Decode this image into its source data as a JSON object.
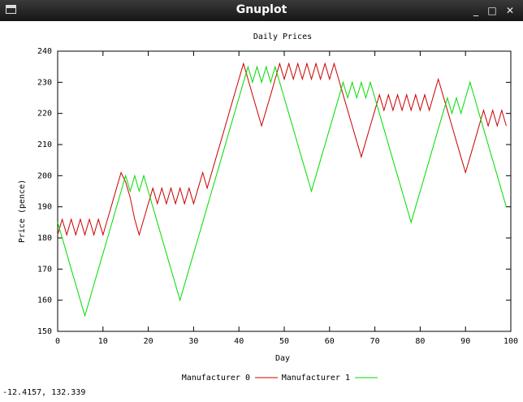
{
  "window": {
    "title": "Gnuplot",
    "icon": "window-menu-icon",
    "buttons": {
      "minimize": "_",
      "maximize": "□",
      "close": "✕"
    }
  },
  "status_text": "-12.4157,  132.339",
  "chart_data": {
    "type": "line",
    "title": "Daily Prices",
    "xlabel": "Day",
    "ylabel": "Price (pence)",
    "xlim": [
      0,
      100
    ],
    "ylim": [
      150,
      240
    ],
    "xticks": [
      0,
      10,
      20,
      30,
      40,
      50,
      60,
      70,
      80,
      90,
      100
    ],
    "yticks": [
      150,
      160,
      170,
      180,
      190,
      200,
      210,
      220,
      230,
      240
    ],
    "legend": "bottom",
    "grid": false,
    "series": [
      {
        "name": "Manufacturer 0",
        "color": "#cc0000",
        "points": [
          [
            0,
            181
          ],
          [
            1,
            186
          ],
          [
            2,
            181
          ],
          [
            3,
            186
          ],
          [
            4,
            181
          ],
          [
            5,
            186
          ],
          [
            6,
            181
          ],
          [
            7,
            186
          ],
          [
            8,
            181
          ],
          [
            9,
            186
          ],
          [
            10,
            181
          ],
          [
            11,
            186
          ],
          [
            12,
            191
          ],
          [
            13,
            196
          ],
          [
            14,
            201
          ],
          [
            15,
            198
          ],
          [
            16,
            193
          ],
          [
            17,
            186
          ],
          [
            18,
            181
          ],
          [
            19,
            186
          ],
          [
            20,
            191
          ],
          [
            21,
            196
          ],
          [
            22,
            191
          ],
          [
            23,
            196
          ],
          [
            24,
            191
          ],
          [
            25,
            196
          ],
          [
            26,
            191
          ],
          [
            27,
            196
          ],
          [
            28,
            191
          ],
          [
            29,
            196
          ],
          [
            30,
            191
          ],
          [
            31,
            196
          ],
          [
            32,
            201
          ],
          [
            33,
            196
          ],
          [
            34,
            201
          ],
          [
            35,
            206
          ],
          [
            36,
            211
          ],
          [
            37,
            216
          ],
          [
            38,
            221
          ],
          [
            39,
            226
          ],
          [
            40,
            231
          ],
          [
            41,
            236
          ],
          [
            42,
            231
          ],
          [
            43,
            226
          ],
          [
            44,
            221
          ],
          [
            45,
            216
          ],
          [
            46,
            221
          ],
          [
            47,
            226
          ],
          [
            48,
            231
          ],
          [
            49,
            236
          ],
          [
            50,
            231
          ],
          [
            51,
            236
          ],
          [
            52,
            231
          ],
          [
            53,
            236
          ],
          [
            54,
            231
          ],
          [
            55,
            236
          ],
          [
            56,
            231
          ],
          [
            57,
            236
          ],
          [
            58,
            231
          ],
          [
            59,
            236
          ],
          [
            60,
            231
          ],
          [
            61,
            236
          ],
          [
            62,
            231
          ],
          [
            63,
            226
          ],
          [
            64,
            221
          ],
          [
            65,
            216
          ],
          [
            66,
            211
          ],
          [
            67,
            206
          ],
          [
            68,
            211
          ],
          [
            69,
            216
          ],
          [
            70,
            221
          ],
          [
            71,
            226
          ],
          [
            72,
            221
          ],
          [
            73,
            226
          ],
          [
            74,
            221
          ],
          [
            75,
            226
          ],
          [
            76,
            221
          ],
          [
            77,
            226
          ],
          [
            78,
            221
          ],
          [
            79,
            226
          ],
          [
            80,
            221
          ],
          [
            81,
            226
          ],
          [
            82,
            221
          ],
          [
            83,
            226
          ],
          [
            84,
            231
          ],
          [
            85,
            226
          ],
          [
            86,
            221
          ],
          [
            87,
            216
          ],
          [
            88,
            211
          ],
          [
            89,
            206
          ],
          [
            90,
            201
          ],
          [
            91,
            206
          ],
          [
            92,
            211
          ],
          [
            93,
            216
          ],
          [
            94,
            221
          ],
          [
            95,
            216
          ],
          [
            96,
            221
          ],
          [
            97,
            216
          ],
          [
            98,
            221
          ],
          [
            99,
            216
          ]
        ]
      },
      {
        "name": "Manufacturer 1",
        "color": "#00dd00",
        "points": [
          [
            0,
            185
          ],
          [
            1,
            180
          ],
          [
            2,
            175
          ],
          [
            3,
            170
          ],
          [
            4,
            165
          ],
          [
            5,
            160
          ],
          [
            6,
            155
          ],
          [
            7,
            160
          ],
          [
            8,
            165
          ],
          [
            9,
            170
          ],
          [
            10,
            175
          ],
          [
            11,
            180
          ],
          [
            12,
            185
          ],
          [
            13,
            190
          ],
          [
            14,
            195
          ],
          [
            15,
            200
          ],
          [
            16,
            195
          ],
          [
            17,
            200
          ],
          [
            18,
            195
          ],
          [
            19,
            200
          ],
          [
            20,
            195
          ],
          [
            21,
            190
          ],
          [
            22,
            185
          ],
          [
            23,
            180
          ],
          [
            24,
            175
          ],
          [
            25,
            170
          ],
          [
            26,
            165
          ],
          [
            27,
            160
          ],
          [
            28,
            165
          ],
          [
            29,
            170
          ],
          [
            30,
            175
          ],
          [
            31,
            180
          ],
          [
            32,
            185
          ],
          [
            33,
            190
          ],
          [
            34,
            195
          ],
          [
            35,
            200
          ],
          [
            36,
            205
          ],
          [
            37,
            210
          ],
          [
            38,
            215
          ],
          [
            39,
            220
          ],
          [
            40,
            225
          ],
          [
            41,
            230
          ],
          [
            42,
            235
          ],
          [
            43,
            230
          ],
          [
            44,
            235
          ],
          [
            45,
            230
          ],
          [
            46,
            235
          ],
          [
            47,
            230
          ],
          [
            48,
            235
          ],
          [
            49,
            230
          ],
          [
            50,
            225
          ],
          [
            51,
            220
          ],
          [
            52,
            215
          ],
          [
            53,
            210
          ],
          [
            54,
            205
          ],
          [
            55,
            200
          ],
          [
            56,
            195
          ],
          [
            57,
            200
          ],
          [
            58,
            205
          ],
          [
            59,
            210
          ],
          [
            60,
            215
          ],
          [
            61,
            220
          ],
          [
            62,
            225
          ],
          [
            63,
            230
          ],
          [
            64,
            225
          ],
          [
            65,
            230
          ],
          [
            66,
            225
          ],
          [
            67,
            230
          ],
          [
            68,
            225
          ],
          [
            69,
            230
          ],
          [
            70,
            225
          ],
          [
            71,
            220
          ],
          [
            72,
            215
          ],
          [
            73,
            210
          ],
          [
            74,
            205
          ],
          [
            75,
            200
          ],
          [
            76,
            195
          ],
          [
            77,
            190
          ],
          [
            78,
            185
          ],
          [
            79,
            190
          ],
          [
            80,
            195
          ],
          [
            81,
            200
          ],
          [
            82,
            205
          ],
          [
            83,
            210
          ],
          [
            84,
            215
          ],
          [
            85,
            220
          ],
          [
            86,
            225
          ],
          [
            87,
            220
          ],
          [
            88,
            225
          ],
          [
            89,
            220
          ],
          [
            90,
            225
          ],
          [
            91,
            230
          ],
          [
            92,
            225
          ],
          [
            93,
            220
          ],
          [
            94,
            215
          ],
          [
            95,
            210
          ],
          [
            96,
            205
          ],
          [
            97,
            200
          ],
          [
            98,
            195
          ],
          [
            99,
            190
          ]
        ]
      }
    ]
  }
}
